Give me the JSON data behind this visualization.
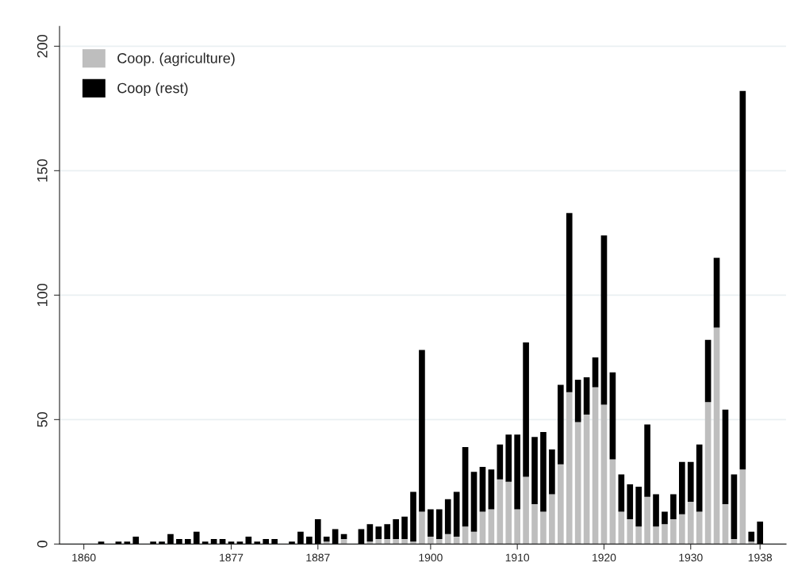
{
  "chart_data": {
    "type": "bar",
    "stacked": true,
    "x": [
      1862,
      1864,
      1865,
      1866,
      1868,
      1869,
      1870,
      1871,
      1872,
      1873,
      1874,
      1875,
      1876,
      1877,
      1878,
      1879,
      1880,
      1881,
      1882,
      1884,
      1885,
      1886,
      1887,
      1888,
      1889,
      1890,
      1892,
      1893,
      1894,
      1895,
      1896,
      1897,
      1898,
      1899,
      1900,
      1901,
      1902,
      1903,
      1904,
      1905,
      1906,
      1907,
      1908,
      1909,
      1910,
      1911,
      1912,
      1913,
      1914,
      1915,
      1916,
      1917,
      1918,
      1919,
      1920,
      1921,
      1922,
      1923,
      1924,
      1925,
      1926,
      1927,
      1928,
      1929,
      1930,
      1931,
      1932,
      1933,
      1934,
      1935,
      1936,
      1937,
      1938
    ],
    "series": [
      {
        "name": "Coop. (agriculture)",
        "color": "#bebebe",
        "values": [
          0,
          0,
          0,
          0,
          0,
          0,
          0,
          0,
          0,
          0,
          0,
          0,
          0,
          0,
          0,
          0,
          0,
          0,
          0,
          0,
          0,
          0,
          0,
          1,
          0,
          2,
          0,
          1,
          2,
          2,
          2,
          2,
          1,
          13,
          3,
          2,
          4,
          3,
          7,
          5,
          13,
          14,
          26,
          25,
          14,
          27,
          16,
          13,
          20,
          32,
          61,
          49,
          52,
          63,
          56,
          34,
          13,
          10,
          7,
          19,
          7,
          8,
          10,
          12,
          17,
          13,
          57,
          87,
          16,
          2,
          30,
          1,
          0
        ]
      },
      {
        "name": "Coop (rest)",
        "color": "#000000",
        "values": [
          1,
          1,
          1,
          3,
          1,
          1,
          4,
          2,
          2,
          5,
          1,
          2,
          2,
          1,
          1,
          3,
          1,
          2,
          2,
          1,
          5,
          3,
          10,
          2,
          6,
          2,
          6,
          7,
          5,
          6,
          8,
          9,
          20,
          65,
          11,
          12,
          14,
          18,
          32,
          24,
          18,
          16,
          14,
          19,
          30,
          54,
          27,
          32,
          18,
          32,
          72,
          17,
          15,
          12,
          68,
          35,
          15,
          14,
          16,
          29,
          13,
          5,
          10,
          21,
          16,
          27,
          25,
          28,
          38,
          26,
          152,
          4,
          9
        ]
      }
    ],
    "xlim": [
      1857.2,
      1941
    ],
    "xticks": [
      1860,
      1877,
      1887,
      1900,
      1910,
      1920,
      1930,
      1938
    ],
    "ylim": [
      0,
      208
    ],
    "yticks": [
      0,
      50,
      100,
      150,
      200
    ],
    "grid": "y",
    "legend": "top left"
  }
}
